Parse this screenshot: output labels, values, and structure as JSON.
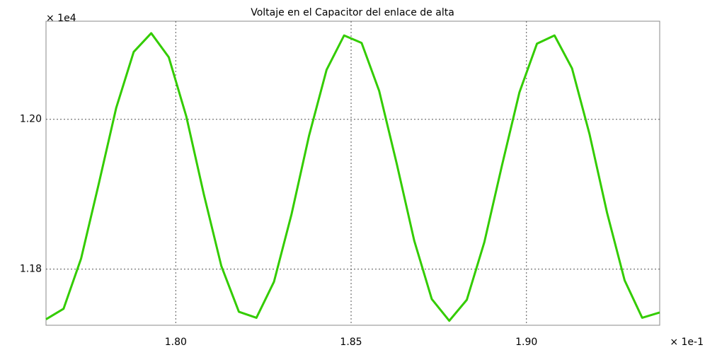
{
  "chart_data": {
    "type": "line",
    "title": "Voltaje en el Capacitor del enlace de alta",
    "y_multiplier": "× 1e4",
    "x_multiplier": "× 1e-1",
    "x": [
      1.763,
      1.768,
      1.773,
      1.778,
      1.783,
      1.788,
      1.793,
      1.798,
      1.803,
      1.808,
      1.813,
      1.818,
      1.823,
      1.828,
      1.833,
      1.838,
      1.843,
      1.848,
      1.853,
      1.858,
      1.863,
      1.868,
      1.873,
      1.878,
      1.883,
      1.888,
      1.893,
      1.898,
      1.903,
      1.908,
      1.913,
      1.918,
      1.923,
      1.928,
      1.933,
      1.938
    ],
    "series": [
      {
        "color": "#33cc00",
        "values": [
          1.1733,
          1.1747,
          1.1814,
          1.1913,
          1.2015,
          1.209,
          1.2115,
          1.2083,
          1.2004,
          1.19,
          1.1804,
          1.1743,
          1.1735,
          1.1783,
          1.1873,
          1.1978,
          1.2066,
          1.2112,
          1.2102,
          1.2038,
          1.1941,
          1.1838,
          1.176,
          1.1731,
          1.1759,
          1.1836,
          1.1938,
          1.2036,
          1.2101,
          1.2112,
          1.2068,
          1.198,
          1.1875,
          1.1785,
          1.1735,
          1.1742
        ]
      }
    ],
    "xlim": [
      1.763,
      1.938
    ],
    "ylim": [
      1.1725,
      1.2131
    ],
    "xticks": [
      {
        "value": 1.8,
        "label": "1.80"
      },
      {
        "value": 1.85,
        "label": "1.85"
      },
      {
        "value": 1.9,
        "label": "1.90"
      }
    ],
    "yticks": [
      {
        "value": 1.18,
        "label": "1.18"
      },
      {
        "value": 1.2,
        "label": "1.20"
      }
    ],
    "grid": true
  }
}
